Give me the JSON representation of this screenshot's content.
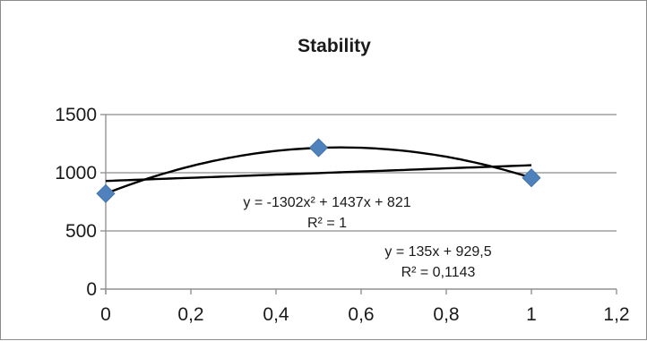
{
  "chart_data": {
    "type": "scatter",
    "title": "Stability",
    "xlabel": "",
    "ylabel": "",
    "xlim": [
      0,
      1.2
    ],
    "ylim": [
      0,
      1500
    ],
    "x_ticks": [
      0,
      0.2,
      0.4,
      0.6,
      0.8,
      1,
      1.2
    ],
    "x_tick_labels": [
      "0",
      "0,2",
      "0,4",
      "0,6",
      "0,8",
      "1",
      "1,2"
    ],
    "y_ticks": [
      0,
      500,
      1000,
      1500
    ],
    "y_tick_labels": [
      "0",
      "500",
      "1000",
      "1500"
    ],
    "grid": "horizontal",
    "legend": "none",
    "series": [
      {
        "x": [
          0,
          0.5,
          1
        ],
        "y": [
          821,
          1215,
          956
        ],
        "marker": "diamond",
        "color": "#4f81bd"
      }
    ],
    "trendlines": [
      {
        "kind": "polynomial",
        "order": 2,
        "coefficients": [
          -1302,
          1437,
          821
        ],
        "x_range": [
          0,
          1
        ],
        "color": "#000000"
      },
      {
        "kind": "linear",
        "slope": 135,
        "intercept": 929.5,
        "x_range": [
          0,
          1
        ],
        "color": "#000000"
      }
    ],
    "annotations": [
      {
        "equation": "y = -1302x² + 1437x + 821",
        "r_squared": "R² = 1"
      },
      {
        "equation": "y = 135x + 929,5",
        "r_squared": "R² = 0,1143"
      }
    ]
  }
}
